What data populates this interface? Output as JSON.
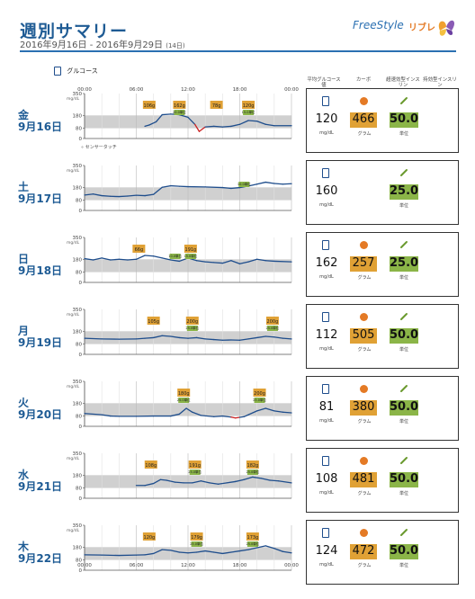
{
  "header": {
    "title": "週別サマリー",
    "date_range": "2016年9月16日 - 2016年9月29日",
    "days_count": "(14日)",
    "brand": "FreeStyle",
    "brand_sub": "リブレ"
  },
  "legend": {
    "glucose_label": "グルコース",
    "sensor_touch_label": "センサータッチ"
  },
  "columns": {
    "avg_glucose": "平均グルコース値",
    "carbs": "カーボ",
    "rapid_insulin": "超速効型インスリン",
    "long_insulin": "持効型インスリン"
  },
  "axis": {
    "time_ticks": [
      "00:00",
      "06:00",
      "12:00",
      "18:00",
      "00:00"
    ],
    "y_ticks": [
      "350",
      "180",
      "80",
      "0"
    ],
    "y_unit": "mg/dL",
    "target_range": [
      80,
      180
    ]
  },
  "units": {
    "glucose": "mg/dL",
    "carb": "グラム",
    "insulin": "単位"
  },
  "colors": {
    "title_blue": "#1e5b94",
    "line_blue": "#1e4d8c",
    "low_red": "#cc2222",
    "carb_orange": "#e0a135",
    "insulin_green": "#8bb548",
    "target_band": "#d0d0d0"
  },
  "days": [
    {
      "weekday": "金",
      "date": "9月16日",
      "avg_glucose": "120",
      "carbs": "466",
      "rapid_insulin": "50.0",
      "markers": [
        {
          "time": 7.5,
          "kind": "carb",
          "text": "106g"
        },
        {
          "time": 11.0,
          "kind": "carb",
          "text": "162g"
        },
        {
          "time": 11.0,
          "kind": "ins",
          "text": "20.0単位"
        },
        {
          "time": 15.3,
          "kind": "carb",
          "text": "78g"
        },
        {
          "time": 19.0,
          "kind": "carb",
          "text": "120g"
        },
        {
          "time": 19.0,
          "kind": "ins",
          "text": "15.0単位"
        }
      ],
      "points": [
        [
          7.0,
          95
        ],
        [
          7.5,
          105
        ],
        [
          8.3,
          130
        ],
        [
          9.0,
          185
        ],
        [
          10.0,
          190
        ],
        [
          11.0,
          185
        ],
        [
          12.0,
          165
        ],
        [
          12.8,
          110
        ],
        [
          13.3,
          55
        ],
        [
          14.0,
          90
        ],
        [
          15.0,
          95
        ],
        [
          16.0,
          90
        ],
        [
          17.0,
          95
        ],
        [
          18.0,
          110
        ],
        [
          19.0,
          140
        ],
        [
          20.0,
          135
        ],
        [
          21.0,
          110
        ],
        [
          22.0,
          100
        ],
        [
          24.0,
          100
        ]
      ]
    },
    {
      "weekday": "土",
      "date": "9月17日",
      "avg_glucose": "160",
      "carbs": "",
      "rapid_insulin": "25.0",
      "markers": [
        {
          "time": 18.5,
          "kind": "ins",
          "text": "10.0単位"
        }
      ],
      "points": [
        [
          0.0,
          120
        ],
        [
          1.0,
          128
        ],
        [
          2.0,
          115
        ],
        [
          3.0,
          110
        ],
        [
          4.0,
          108
        ],
        [
          5.0,
          112
        ],
        [
          6.0,
          118
        ],
        [
          7.0,
          115
        ],
        [
          8.0,
          125
        ],
        [
          9.0,
          180
        ],
        [
          10.0,
          192
        ],
        [
          11.0,
          188
        ],
        [
          12.0,
          185
        ],
        [
          14.0,
          183
        ],
        [
          16.0,
          178
        ],
        [
          17.0,
          172
        ],
        [
          18.0,
          178
        ],
        [
          19.0,
          190
        ],
        [
          20.0,
          205
        ],
        [
          21.0,
          220
        ],
        [
          22.0,
          210
        ],
        [
          23.0,
          205
        ],
        [
          24.0,
          208
        ]
      ]
    },
    {
      "weekday": "日",
      "date": "9月18日",
      "avg_glucose": "162",
      "carbs": "257",
      "rapid_insulin": "25.0",
      "markers": [
        {
          "time": 6.3,
          "kind": "carb",
          "text": "66g"
        },
        {
          "time": 10.5,
          "kind": "ins",
          "text": "10.0単位"
        },
        {
          "time": 12.3,
          "kind": "carb",
          "text": "191g"
        },
        {
          "time": 12.3,
          "kind": "ins",
          "text": "15.0単位"
        }
      ],
      "points": [
        [
          0.0,
          185
        ],
        [
          1.0,
          175
        ],
        [
          2.0,
          190
        ],
        [
          3.0,
          175
        ],
        [
          4.0,
          180
        ],
        [
          5.0,
          175
        ],
        [
          6.0,
          180
        ],
        [
          7.0,
          210
        ],
        [
          8.0,
          205
        ],
        [
          9.0,
          190
        ],
        [
          10.0,
          175
        ],
        [
          11.0,
          165
        ],
        [
          12.0,
          190
        ],
        [
          13.0,
          170
        ],
        [
          14.0,
          160
        ],
        [
          15.0,
          155
        ],
        [
          16.0,
          150
        ],
        [
          17.0,
          170
        ],
        [
          18.0,
          145
        ],
        [
          19.0,
          160
        ],
        [
          20.0,
          180
        ],
        [
          21.0,
          170
        ],
        [
          22.0,
          165
        ],
        [
          24.0,
          160
        ]
      ]
    },
    {
      "weekday": "月",
      "date": "9月19日",
      "avg_glucose": "112",
      "carbs": "505",
      "rapid_insulin": "50.0",
      "markers": [
        {
          "time": 8.0,
          "kind": "carb",
          "text": "105g"
        },
        {
          "time": 12.5,
          "kind": "carb",
          "text": "200g"
        },
        {
          "time": 12.5,
          "kind": "ins",
          "text": "25.0単位"
        },
        {
          "time": 21.8,
          "kind": "carb",
          "text": "200g"
        },
        {
          "time": 21.8,
          "kind": "ins",
          "text": "25.0単位"
        }
      ],
      "points": [
        [
          0.0,
          125
        ],
        [
          2.0,
          120
        ],
        [
          4.0,
          118
        ],
        [
          6.0,
          120
        ],
        [
          7.0,
          125
        ],
        [
          8.0,
          130
        ],
        [
          9.0,
          145
        ],
        [
          10.0,
          140
        ],
        [
          11.0,
          130
        ],
        [
          12.0,
          125
        ],
        [
          13.0,
          130
        ],
        [
          14.0,
          120
        ],
        [
          15.0,
          115
        ],
        [
          16.0,
          110
        ],
        [
          17.0,
          112
        ],
        [
          18.0,
          110
        ],
        [
          19.0,
          120
        ],
        [
          20.0,
          130
        ],
        [
          21.0,
          140
        ],
        [
          22.0,
          135
        ],
        [
          23.0,
          125
        ],
        [
          24.0,
          120
        ]
      ]
    },
    {
      "weekday": "火",
      "date": "9月20日",
      "avg_glucose": "81",
      "carbs": "380",
      "rapid_insulin": "50.0",
      "markers": [
        {
          "time": 11.5,
          "kind": "carb",
          "text": "180g"
        },
        {
          "time": 11.5,
          "kind": "ins",
          "text": "25.0単位"
        },
        {
          "time": 20.3,
          "kind": "carb",
          "text": "200g"
        },
        {
          "time": 20.3,
          "kind": "ins",
          "text": "25.0単位"
        }
      ],
      "points": [
        [
          0.0,
          100
        ],
        [
          2.0,
          90
        ],
        [
          3.0,
          80
        ],
        [
          4.0,
          78
        ],
        [
          6.0,
          78
        ],
        [
          8.0,
          80
        ],
        [
          10.0,
          80
        ],
        [
          11.0,
          95
        ],
        [
          11.8,
          140
        ],
        [
          12.5,
          110
        ],
        [
          13.5,
          85
        ],
        [
          15.0,
          75
        ],
        [
          16.0,
          80
        ],
        [
          17.0,
          72
        ],
        [
          17.5,
          65
        ],
        [
          18.0,
          70
        ],
        [
          18.5,
          75
        ],
        [
          19.0,
          90
        ],
        [
          20.0,
          120
        ],
        [
          21.0,
          140
        ],
        [
          22.0,
          120
        ],
        [
          23.0,
          110
        ],
        [
          24.0,
          105
        ]
      ]
    },
    {
      "weekday": "水",
      "date": "9月21日",
      "avg_glucose": "108",
      "carbs": "481",
      "rapid_insulin": "50.0",
      "markers": [
        {
          "time": 7.7,
          "kind": "carb",
          "text": "108g"
        },
        {
          "time": 12.8,
          "kind": "carb",
          "text": "191g"
        },
        {
          "time": 12.8,
          "kind": "ins",
          "text": "25.0単位"
        },
        {
          "time": 19.5,
          "kind": "carb",
          "text": "182g"
        },
        {
          "time": 19.5,
          "kind": "ins",
          "text": "25.0単位"
        }
      ],
      "points": [
        [
          6.0,
          100
        ],
        [
          7.0,
          100
        ],
        [
          8.0,
          115
        ],
        [
          8.8,
          145
        ],
        [
          9.5,
          140
        ],
        [
          10.5,
          125
        ],
        [
          11.5,
          120
        ],
        [
          12.5,
          120
        ],
        [
          13.5,
          135
        ],
        [
          14.5,
          120
        ],
        [
          15.5,
          110
        ],
        [
          16.5,
          120
        ],
        [
          17.5,
          130
        ],
        [
          18.5,
          145
        ],
        [
          19.5,
          165
        ],
        [
          20.5,
          155
        ],
        [
          21.5,
          140
        ],
        [
          22.5,
          135
        ],
        [
          24.0,
          120
        ]
      ]
    },
    {
      "weekday": "木",
      "date": "9月22日",
      "avg_glucose": "124",
      "carbs": "472",
      "rapid_insulin": "50.0",
      "markers": [
        {
          "time": 7.5,
          "kind": "carb",
          "text": "120g"
        },
        {
          "time": 13.0,
          "kind": "carb",
          "text": "179g"
        },
        {
          "time": 13.0,
          "kind": "ins",
          "text": "25.0単位"
        },
        {
          "time": 19.5,
          "kind": "carb",
          "text": "173g"
        },
        {
          "time": 19.5,
          "kind": "ins",
          "text": "25.0単位"
        }
      ],
      "points": [
        [
          0.0,
          120
        ],
        [
          2.0,
          118
        ],
        [
          4.0,
          115
        ],
        [
          6.0,
          118
        ],
        [
          7.0,
          120
        ],
        [
          8.0,
          130
        ],
        [
          9.0,
          160
        ],
        [
          10.0,
          155
        ],
        [
          11.0,
          140
        ],
        [
          12.0,
          135
        ],
        [
          13.0,
          140
        ],
        [
          14.0,
          150
        ],
        [
          15.0,
          140
        ],
        [
          16.0,
          130
        ],
        [
          17.0,
          140
        ],
        [
          18.0,
          150
        ],
        [
          19.0,
          160
        ],
        [
          20.0,
          175
        ],
        [
          21.0,
          190
        ],
        [
          22.0,
          170
        ],
        [
          23.0,
          145
        ],
        [
          24.0,
          135
        ]
      ]
    }
  ]
}
